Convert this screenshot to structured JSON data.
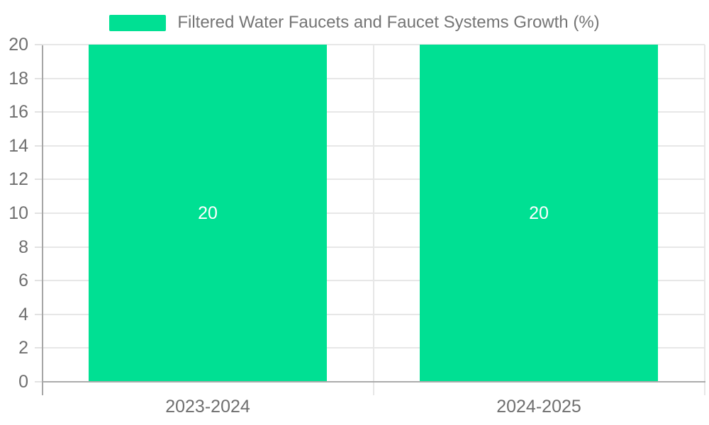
{
  "legend": {
    "position": "top",
    "items": [
      {
        "label": "Filtered Water Faucets and Faucet Systems Growth (%)",
        "swatch_color": "#00E093"
      }
    ]
  },
  "chart_data": {
    "type": "bar",
    "title": "Filtered Water Faucets and Faucet Systems Growth (%)",
    "categories": [
      "2023-2024",
      "2024-2025"
    ],
    "series": [
      {
        "name": "Filtered Water Faucets and Faucet Systems Growth (%)",
        "values": [
          20,
          20
        ],
        "color": "#00E093"
      }
    ],
    "data_labels": [
      "20",
      "20"
    ],
    "xlabel": "",
    "ylabel": "",
    "ylim": [
      0,
      20
    ],
    "yticks": [
      0,
      2,
      4,
      6,
      8,
      10,
      12,
      14,
      16,
      18,
      20
    ],
    "grid": true,
    "legend_position": "top",
    "colors": {
      "bar": "#00E093",
      "grid_line": "#e7e7e7",
      "tick_mark": "#e2e2e2",
      "axis_line": "#a6a6a6",
      "baseline": "#ababab",
      "axis_label": "#6f6f6f",
      "data_label": "#ffffff",
      "legend_label": "#757575",
      "background": "#ffffff"
    }
  }
}
